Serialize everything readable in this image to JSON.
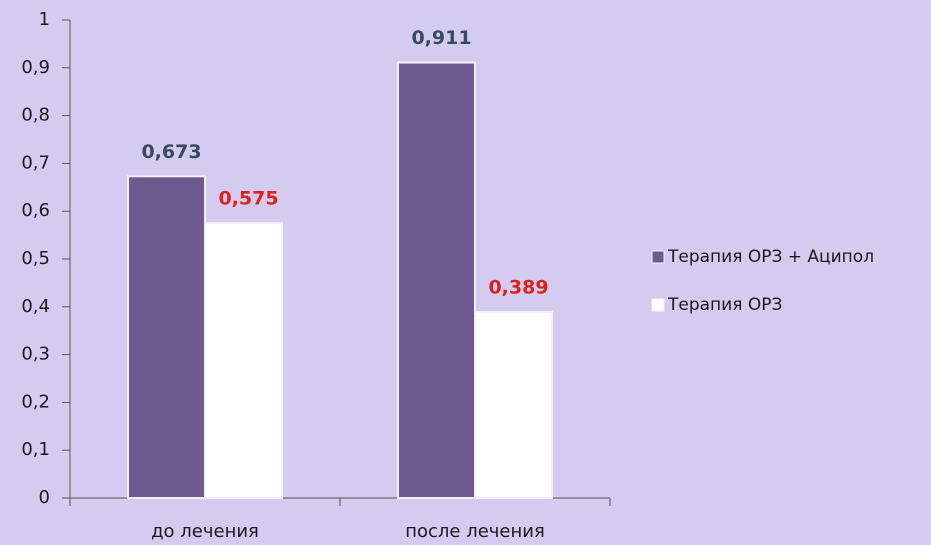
{
  "chart_data": {
    "type": "bar",
    "categories": [
      "до лечения",
      "после лечения"
    ],
    "series": [
      {
        "name": "Терапия ОРЗ + Аципол",
        "color": "#6d5a8e",
        "label_color": "#3a4a5e",
        "values": [
          0.673,
          0.911
        ],
        "value_labels": [
          "0,673",
          "0,911"
        ]
      },
      {
        "name": "Терапия ОРЗ",
        "color": "#ffffff",
        "label_color": "#e0201b",
        "values": [
          0.575,
          0.389
        ],
        "value_labels": [
          "0,575",
          "0,389"
        ]
      }
    ],
    "ylim": [
      0,
      1
    ],
    "yticks": [
      0,
      {
        "value": 0.1,
        "label": "0,1"
      },
      {
        "value": 0.2,
        "label": "0,2"
      },
      {
        "value": 0.3,
        "label": "0,3"
      },
      {
        "value": 0.4,
        "label": "0,4"
      },
      {
        "value": 0.5,
        "label": "0,5"
      },
      {
        "value": 0.6,
        "label": "0,6"
      },
      {
        "value": 0.7,
        "label": "0,7"
      },
      {
        "value": 0.8,
        "label": "0,8"
      },
      {
        "value": 0.9,
        "label": "0,9"
      },
      1
    ],
    "legend": "right"
  }
}
